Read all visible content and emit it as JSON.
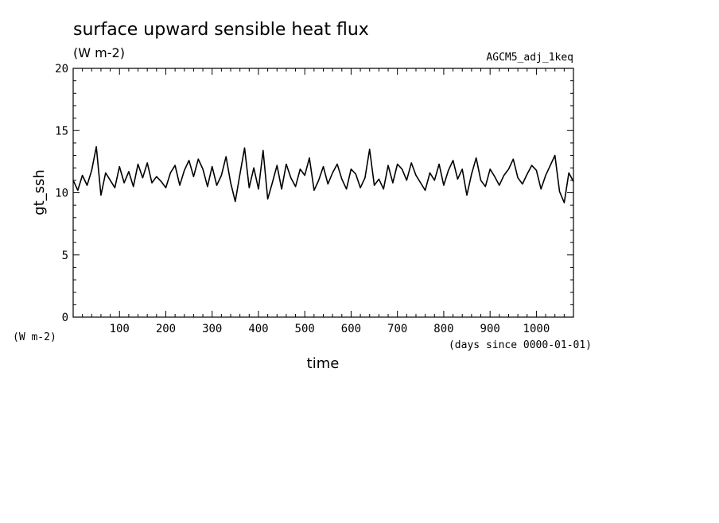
{
  "chart_data": {
    "type": "line",
    "title": "surface upward sensible heat flux",
    "subtitle": "(W m-2)",
    "run_label": "AGCM5_adj_1keq",
    "ylabel": "gt_ssh",
    "y_units": "(W m-2)",
    "xlabel": "time",
    "x_units": "(days since 0000-01-01)",
    "xlim": [
      0,
      1080
    ],
    "ylim": [
      0,
      20
    ],
    "x_ticks": [
      100,
      200,
      300,
      400,
      500,
      600,
      700,
      800,
      900,
      1000
    ],
    "y_ticks": [
      0,
      5,
      10,
      15,
      20
    ],
    "grid": false,
    "series": [
      {
        "x": [
          0,
          10,
          20,
          30,
          40,
          50,
          60,
          70,
          80,
          90,
          100,
          110,
          120,
          130,
          140,
          150,
          160,
          170,
          180,
          190,
          200,
          210,
          220,
          230,
          240,
          250,
          260,
          270,
          280,
          290,
          300,
          310,
          320,
          330,
          340,
          350,
          360,
          370,
          380,
          390,
          400,
          410,
          420,
          430,
          440,
          450,
          460,
          470,
          480,
          490,
          500,
          510,
          520,
          530,
          540,
          550,
          560,
          570,
          580,
          590,
          600,
          610,
          620,
          630,
          640,
          650,
          660,
          670,
          680,
          690,
          700,
          710,
          720,
          730,
          740,
          750,
          760,
          770,
          780,
          790,
          800,
          810,
          820,
          830,
          840,
          850,
          860,
          870,
          880,
          890,
          900,
          910,
          920,
          930,
          940,
          950,
          960,
          970,
          980,
          990,
          1000,
          1010,
          1020,
          1030,
          1040,
          1050,
          1060,
          1070,
          1080
        ],
        "values": [
          11.0,
          10.2,
          11.4,
          10.6,
          11.8,
          13.7,
          9.8,
          11.6,
          11.0,
          10.4,
          12.1,
          10.8,
          11.7,
          10.5,
          12.3,
          11.2,
          12.4,
          10.8,
          11.3,
          10.9,
          10.4,
          11.6,
          12.2,
          10.6,
          11.8,
          12.6,
          11.3,
          12.7,
          11.9,
          10.5,
          12.1,
          10.6,
          11.4,
          12.9,
          10.8,
          9.3,
          11.5,
          13.6,
          10.4,
          12.0,
          10.3,
          13.4,
          9.5,
          10.8,
          12.2,
          10.3,
          12.3,
          11.2,
          10.5,
          11.9,
          11.4,
          12.8,
          10.2,
          11.0,
          12.1,
          10.7,
          11.6,
          12.3,
          11.1,
          10.3,
          11.9,
          11.5,
          10.4,
          11.2,
          13.5,
          10.6,
          11.1,
          10.3,
          12.2,
          10.8,
          12.3,
          11.9,
          11.0,
          12.4,
          11.4,
          10.8,
          10.2,
          11.6,
          11.0,
          12.3,
          10.6,
          11.8,
          12.6,
          11.1,
          11.9,
          9.8,
          11.5,
          12.8,
          11.0,
          10.5,
          11.9,
          11.3,
          10.6,
          11.4,
          11.9,
          12.7,
          11.2,
          10.7,
          11.5,
          12.2,
          11.8,
          10.3,
          11.4,
          12.2,
          13.0,
          10.1,
          9.2,
          11.6,
          10.9
        ]
      }
    ]
  }
}
